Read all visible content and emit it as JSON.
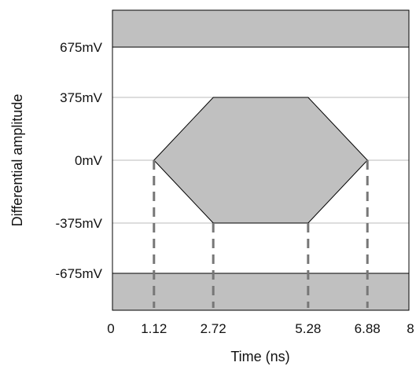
{
  "diagram": {
    "ylabel": "Differential amplitude",
    "xlabel": "Time (ns)",
    "y_ticks": [
      {
        "label": "675mV",
        "value": 675
      },
      {
        "label": "375mV",
        "value": 375
      },
      {
        "label": "0mV",
        "value": 0
      },
      {
        "label": "-375mV",
        "value": -375
      },
      {
        "label": "-675mV",
        "value": -675
      }
    ],
    "x_ticks": [
      {
        "label": "0",
        "value": 0
      },
      {
        "label": "1.12",
        "value": 1.12
      },
      {
        "label": "2.72",
        "value": 2.72
      },
      {
        "label": "5.28",
        "value": 5.28
      },
      {
        "label": "6.88",
        "value": 6.88
      },
      {
        "label": "8",
        "value": 8
      }
    ],
    "x_range": [
      0,
      8
    ],
    "eye_mask": [
      [
        1.12,
        0
      ],
      [
        2.72,
        375
      ],
      [
        5.28,
        375
      ],
      [
        6.88,
        0
      ],
      [
        5.28,
        -375
      ],
      [
        2.72,
        -375
      ]
    ],
    "keep_out_limits_mV": [
      675,
      -675
    ],
    "dashed_time_markers_ns": [
      1.12,
      2.72,
      5.28,
      6.88
    ],
    "colors": {
      "mask_fill": "#c0c0c0",
      "mask_stroke": "#000000",
      "gridline": "#bbbbbb",
      "dash": "#777777",
      "frame": "#000000"
    }
  }
}
